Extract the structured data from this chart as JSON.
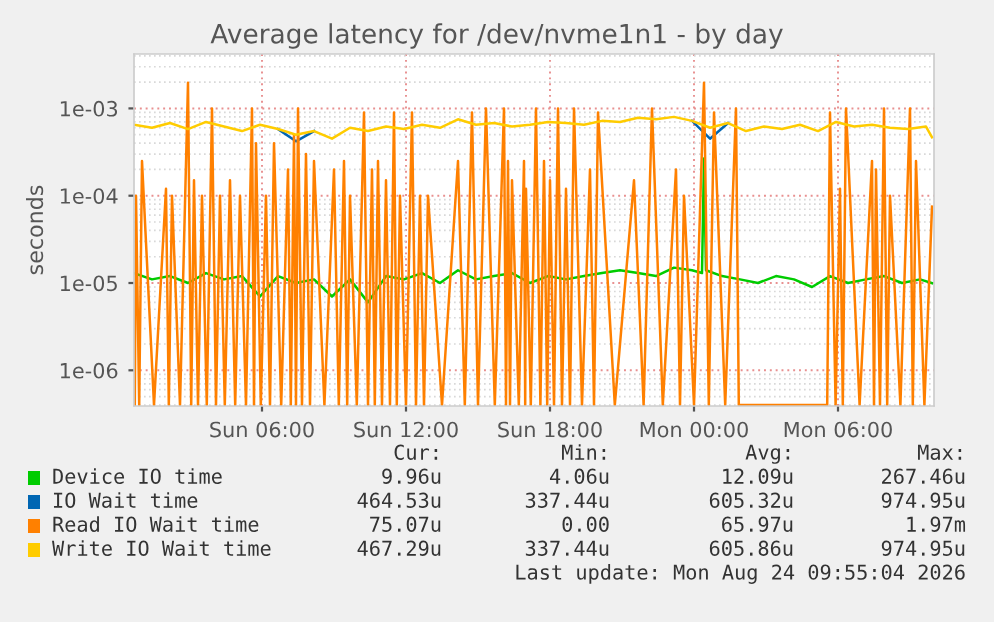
{
  "chart_data": {
    "type": "line",
    "title": "Average latency for /dev/nvme1n1 - by day",
    "ylabel": "seconds",
    "log": "y",
    "grid": true,
    "legend": "bottom",
    "xlim": [
      "2026-08-23T00:40",
      "2026-08-24T10:00"
    ],
    "xticks": [
      {
        "value": "2026-08-23T06:00",
        "label": "Sun 06:00"
      },
      {
        "value": "2026-08-23T12:00",
        "label": "Sun 12:00"
      },
      {
        "value": "2026-08-23T18:00",
        "label": "Sun 18:00"
      },
      {
        "value": "2026-08-24T00:00",
        "label": "Mon 00:00"
      },
      {
        "value": "2026-08-24T06:00",
        "label": "Mon 06:00"
      }
    ],
    "ylim": [
      3.9e-07,
      0.0042
    ],
    "yticks": [
      {
        "value": 1e-06,
        "label": "1e-06"
      },
      {
        "value": 1e-05,
        "label": "1e-05"
      },
      {
        "value": 0.0001,
        "label": "1e-04"
      },
      {
        "value": 0.001,
        "label": "1e-03"
      }
    ],
    "series": [
      {
        "name": "Device IO time",
        "color": "#00cc00",
        "x": [
          "2026-08-23T00:40",
          "2026-08-23T01:25",
          "2026-08-23T02:10",
          "2026-08-23T02:55",
          "2026-08-23T03:40",
          "2026-08-23T04:25",
          "2026-08-23T05:10",
          "2026-08-23T05:55",
          "2026-08-23T06:40",
          "2026-08-23T07:25",
          "2026-08-23T08:10",
          "2026-08-23T08:55",
          "2026-08-23T09:40",
          "2026-08-23T10:25",
          "2026-08-23T11:10",
          "2026-08-23T11:55",
          "2026-08-23T12:40",
          "2026-08-23T13:25",
          "2026-08-23T14:10",
          "2026-08-23T14:55",
          "2026-08-23T15:40",
          "2026-08-23T16:25",
          "2026-08-23T17:10",
          "2026-08-23T17:55",
          "2026-08-23T18:40",
          "2026-08-23T19:25",
          "2026-08-23T20:10",
          "2026-08-23T20:55",
          "2026-08-23T21:40",
          "2026-08-23T22:25",
          "2026-08-23T23:10",
          "2026-08-23T23:55",
          "2026-08-24T00:20",
          "2026-08-24T00:25",
          "2026-08-24T00:30",
          "2026-08-24T01:10",
          "2026-08-24T01:55",
          "2026-08-24T02:40",
          "2026-08-24T03:25",
          "2026-08-24T04:10",
          "2026-08-24T04:55",
          "2026-08-24T05:40",
          "2026-08-24T06:25",
          "2026-08-24T07:10",
          "2026-08-24T07:55",
          "2026-08-24T08:40",
          "2026-08-24T09:25",
          "2026-08-24T09:55"
        ],
        "values": [
          1.3e-05,
          1.1e-05,
          1.2e-05,
          1e-05,
          1.3e-05,
          1.1e-05,
          1.2e-05,
          7e-06,
          1.2e-05,
          1e-05,
          1.1e-05,
          7e-06,
          1.1e-05,
          6e-06,
          1.2e-05,
          1.1e-05,
          1.3e-05,
          1e-05,
          1.4e-05,
          1.1e-05,
          1.2e-05,
          1.3e-05,
          1e-05,
          1.2e-05,
          1.1e-05,
          1.2e-05,
          1.3e-05,
          1.4e-05,
          1.3e-05,
          1.2e-05,
          1.5e-05,
          1.4e-05,
          1.3e-05,
          0.000267,
          1.4e-05,
          1.2e-05,
          1.1e-05,
          1e-05,
          1.2e-05,
          1.1e-05,
          9e-06,
          1.2e-05,
          1e-05,
          1.1e-05,
          1.2e-05,
          1e-05,
          1.1e-05,
          9.96e-06
        ]
      },
      {
        "name": "IO Wait time",
        "color": "#0066b3",
        "x": [
          "2026-08-23T06:40",
          "2026-08-23T07:25",
          "2026-08-23T08:10",
          "2026-08-23T16:00",
          "2026-08-23T23:55",
          "2026-08-24T00:40",
          "2026-08-24T01:25"
        ],
        "values": [
          0.00058,
          0.00042,
          0.00055,
          null,
          0.00072,
          0.00045,
          0.00068
        ]
      },
      {
        "name": "Read IO Wait time",
        "color": "#ff8000",
        "x": [
          "2026-08-23T00:42",
          "2026-08-23T00:45",
          "2026-08-23T00:53",
          "2026-08-23T01:00",
          "2026-08-23T01:30",
          "2026-08-23T02:00",
          "2026-08-23T02:07",
          "2026-08-23T02:15",
          "2026-08-23T02:35",
          "2026-08-23T02:55",
          "2026-08-23T03:03",
          "2026-08-23T03:10",
          "2026-08-23T03:20",
          "2026-08-23T03:30",
          "2026-08-23T03:42",
          "2026-08-23T03:55",
          "2026-08-23T04:05",
          "2026-08-23T04:15",
          "2026-08-23T04:27",
          "2026-08-23T04:40",
          "2026-08-23T04:53",
          "2026-08-23T05:05",
          "2026-08-23T05:20",
          "2026-08-23T05:35",
          "2026-08-23T05:40",
          "2026-08-23T05:45",
          "2026-08-23T05:57",
          "2026-08-23T06:10",
          "2026-08-23T06:20",
          "2026-08-23T06:30",
          "2026-08-23T06:48",
          "2026-08-23T07:05",
          "2026-08-23T07:12",
          "2026-08-23T07:20",
          "2026-08-23T07:25",
          "2026-08-23T07:30",
          "2026-08-23T07:40",
          "2026-08-23T07:50",
          "2026-08-23T08:00",
          "2026-08-23T08:10",
          "2026-08-23T08:36",
          "2026-08-23T09:00",
          "2026-08-23T09:12",
          "2026-08-23T09:25",
          "2026-08-23T09:33",
          "2026-08-23T09:40",
          "2026-08-23T09:57",
          "2026-08-23T10:15",
          "2026-08-23T10:25",
          "2026-08-23T10:35",
          "2026-08-23T10:42",
          "2026-08-23T10:50",
          "2026-08-23T11:00",
          "2026-08-23T11:10",
          "2026-08-23T11:20",
          "2026-08-23T11:30",
          "2026-08-23T11:37",
          "2026-08-23T11:45",
          "2026-08-23T12:00",
          "2026-08-23T12:15",
          "2026-08-23T12:25",
          "2026-08-23T12:35",
          "2026-08-23T12:45",
          "2026-08-23T12:55",
          "2026-08-23T13:30",
          "2026-08-23T14:10",
          "2026-08-23T14:27",
          "2026-08-23T14:45",
          "2026-08-23T15:00",
          "2026-08-23T15:20",
          "2026-08-23T15:42",
          "2026-08-23T16:05",
          "2026-08-23T16:10",
          "2026-08-23T16:15",
          "2026-08-23T16:20",
          "2026-08-23T16:25",
          "2026-08-23T16:42",
          "2026-08-23T16:55",
          "2026-08-23T16:58",
          "2026-08-23T17:00",
          "2026-08-23T17:12",
          "2026-08-23T17:25",
          "2026-08-23T17:36",
          "2026-08-23T17:45",
          "2026-08-23T17:53",
          "2026-08-23T18:00",
          "2026-08-23T18:10",
          "2026-08-23T18:20",
          "2026-08-23T18:30",
          "2026-08-23T18:40",
          "2026-08-23T18:50",
          "2026-08-23T19:00",
          "2026-08-23T19:20",
          "2026-08-23T19:40",
          "2026-08-23T19:50",
          "2026-08-23T20:00",
          "2026-08-23T20:42",
          "2026-08-23T21:30",
          "2026-08-23T21:54",
          "2026-08-23T22:15",
          "2026-08-23T22:42",
          "2026-08-23T23:15",
          "2026-08-23T23:25",
          "2026-08-23T23:35",
          "2026-08-24T00:00",
          "2026-08-24T00:25",
          "2026-08-24T00:37",
          "2026-08-24T00:50",
          "2026-08-24T01:18",
          "2026-08-24T01:45",
          "2026-08-24T01:52",
          "2026-08-24T03:30",
          "2026-08-24T05:33",
          "2026-08-24T05:40",
          "2026-08-24T05:54",
          "2026-08-24T06:05",
          "2026-08-24T06:12",
          "2026-08-24T06:20",
          "2026-08-24T06:54",
          "2026-08-24T07:25",
          "2026-08-24T07:30",
          "2026-08-24T07:35",
          "2026-08-24T07:45",
          "2026-08-24T07:55",
          "2026-08-24T08:03",
          "2026-08-24T08:10",
          "2026-08-24T08:36",
          "2026-08-24T09:00",
          "2026-08-24T09:07",
          "2026-08-24T09:15",
          "2026-08-24T09:36",
          "2026-08-24T09:55"
        ],
        "values": [
          4e-07,
          0.0001,
          4e-07,
          0.00025,
          4e-07,
          0.00012,
          4e-07,
          0.0001,
          4e-07,
          0.00197,
          4e-07,
          0.00015,
          4e-07,
          0.0001,
          4e-07,
          0.001,
          4e-07,
          0.0001,
          4e-07,
          0.00015,
          4e-07,
          0.0001,
          4e-07,
          0.001,
          4e-07,
          0.0004,
          4e-07,
          0.0001,
          4e-07,
          0.0004,
          4e-07,
          0.0002,
          4e-07,
          0.0005,
          4e-07,
          0.001,
          4e-07,
          0.0003,
          4e-07,
          0.00025,
          4e-07,
          0.0002,
          4e-07,
          0.00025,
          4e-07,
          0.0001,
          4e-07,
          0.0009,
          4e-07,
          0.0002,
          4e-07,
          0.00025,
          4e-07,
          0.00015,
          4e-07,
          0.0009,
          4e-07,
          0.0001,
          4e-07,
          0.0009,
          4e-07,
          0.0001,
          4e-07,
          0.0001,
          4e-07,
          0.00025,
          4e-07,
          0.0009,
          4e-07,
          0.001,
          4e-07,
          0.001,
          4e-07,
          0.00025,
          4e-07,
          0.00015,
          4e-07,
          0.00025,
          4e-07,
          0.00012,
          4e-07,
          0.001,
          4e-07,
          0.00025,
          4e-07,
          0.00015,
          4e-07,
          0.001,
          4e-07,
          0.00012,
          4e-07,
          0.001,
          4e-07,
          0.0002,
          4e-07,
          0.0009,
          4e-07,
          0.00015,
          4e-07,
          0.001,
          4e-07,
          0.0002,
          4e-07,
          0.0001,
          4e-07,
          0.00197,
          4e-07,
          0.0009,
          4e-07,
          0.001,
          4e-07,
          4e-07,
          4e-07,
          0.0009,
          4e-07,
          0.00012,
          4e-07,
          0.001,
          4e-07,
          0.00025,
          4e-07,
          0.0002,
          4e-07,
          0.001,
          4e-07,
          0.0001,
          4e-07,
          0.001,
          4e-07,
          0.00025,
          4e-07,
          7.5e-05
        ]
      },
      {
        "name": "Write IO Wait time",
        "color": "#ffcc00",
        "x": [
          "2026-08-23T00:40",
          "2026-08-23T01:25",
          "2026-08-23T02:10",
          "2026-08-23T02:55",
          "2026-08-23T03:40",
          "2026-08-23T04:25",
          "2026-08-23T05:10",
          "2026-08-23T05:55",
          "2026-08-23T06:40",
          "2026-08-23T07:25",
          "2026-08-23T08:10",
          "2026-08-23T08:55",
          "2026-08-23T09:40",
          "2026-08-23T10:25",
          "2026-08-23T11:10",
          "2026-08-23T11:55",
          "2026-08-23T12:40",
          "2026-08-23T13:25",
          "2026-08-23T14:10",
          "2026-08-23T14:55",
          "2026-08-23T15:40",
          "2026-08-23T16:25",
          "2026-08-23T17:10",
          "2026-08-23T17:55",
          "2026-08-23T18:40",
          "2026-08-23T19:25",
          "2026-08-23T20:10",
          "2026-08-23T20:55",
          "2026-08-23T21:40",
          "2026-08-23T22:25",
          "2026-08-23T23:10",
          "2026-08-23T23:55",
          "2026-08-24T00:40",
          "2026-08-24T01:25",
          "2026-08-24T02:10",
          "2026-08-24T02:55",
          "2026-08-24T03:40",
          "2026-08-24T04:25",
          "2026-08-24T05:10",
          "2026-08-24T05:55",
          "2026-08-24T06:40",
          "2026-08-24T07:25",
          "2026-08-24T08:10",
          "2026-08-24T08:55",
          "2026-08-24T09:40",
          "2026-08-24T09:55"
        ],
        "values": [
          0.00065,
          0.0006,
          0.00068,
          0.00058,
          0.0007,
          0.00062,
          0.00055,
          0.00065,
          0.00058,
          0.0005,
          0.00055,
          0.00045,
          0.0006,
          0.00055,
          0.00062,
          0.00058,
          0.00065,
          0.0006,
          0.00075,
          0.00065,
          0.00068,
          0.00062,
          0.00065,
          0.0007,
          0.00068,
          0.00065,
          0.00072,
          0.0007,
          0.00078,
          0.00075,
          0.0008,
          0.00072,
          0.0006,
          0.00068,
          0.00055,
          0.00062,
          0.00058,
          0.00065,
          0.00055,
          0.0007,
          0.00062,
          0.00065,
          0.0006,
          0.00058,
          0.00062,
          0.000467
        ]
      }
    ],
    "annotations": [
      "Cur:",
      "Min:",
      "Avg:",
      "Max:",
      "9.96u",
      "4.06u",
      "12.09u",
      "267.46u",
      "464.53u",
      "337.44u",
      "605.32u",
      "974.95u",
      "75.07u",
      "0.00",
      "65.97u",
      "1.97m",
      "467.29u",
      "337.44u",
      "605.86u",
      "974.95u",
      "Last update: Mon Aug 24 09:55:04 2026"
    ]
  }
}
